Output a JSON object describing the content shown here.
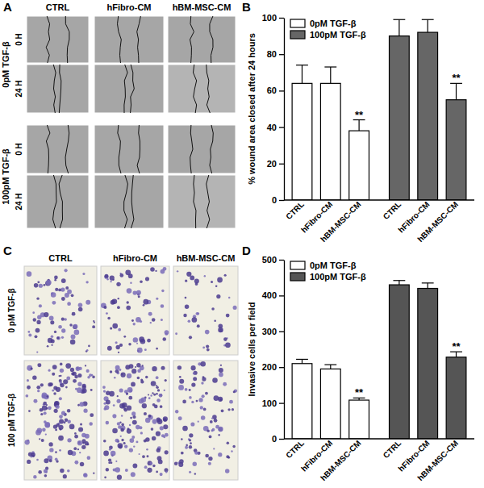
{
  "panel_a": {
    "label": "A",
    "columns": [
      "CTRL",
      "hFibro-CM",
      "hBM-MSC-CM"
    ],
    "row_groups": [
      {
        "label": "0pM TGF-β",
        "rows": [
          "0 H",
          "24 H"
        ]
      },
      {
        "label": "100pM TGF-β",
        "rows": [
          "0 H",
          "24 H"
        ]
      }
    ]
  },
  "panel_c": {
    "label": "C",
    "columns": [
      "CTRL",
      "hFibro-CM",
      "hBM-MSC-CM"
    ],
    "rows": [
      "0 pM TGF-β",
      "100 pM TGF-β"
    ]
  },
  "chart_data": [
    {
      "type": "bar",
      "panel_label": "B",
      "y_label": "% wound area closed after 24 hours",
      "categories": [
        "CTRL",
        "hFibro-CM",
        "hBM-MSC-CM"
      ],
      "series": [
        {
          "name": "0pM TGF-β",
          "color": "#ffffff",
          "values": [
            64,
            64,
            38
          ],
          "errors": [
            10,
            9,
            6
          ],
          "significance": [
            null,
            null,
            "**"
          ]
        },
        {
          "name": "100pM TGF-β",
          "color": "#666666",
          "values": [
            90,
            92,
            55
          ],
          "errors": [
            9,
            7,
            9
          ],
          "significance": [
            null,
            null,
            "**"
          ]
        }
      ],
      "ylim": [
        0,
        100
      ],
      "yticks": [
        0,
        20,
        40,
        60,
        80,
        100
      ],
      "grid": false,
      "legend": "upper left"
    },
    {
      "type": "bar",
      "panel_label": "D",
      "y_label": "Invasive cells per field",
      "categories": [
        "CTRL",
        "hFibro-CM",
        "hBM-MSC-CM"
      ],
      "series": [
        {
          "name": "0pM TGF-β",
          "color": "#ffffff",
          "values": [
            210,
            195,
            108
          ],
          "errors": [
            12,
            12,
            6
          ],
          "significance": [
            null,
            null,
            "**"
          ]
        },
        {
          "name": "100pM TGF-β",
          "color": "#555555",
          "values": [
            430,
            420,
            228
          ],
          "errors": [
            12,
            15,
            15
          ],
          "significance": [
            null,
            null,
            "**"
          ]
        }
      ],
      "ylim": [
        0,
        500
      ],
      "yticks": [
        0,
        100,
        200,
        300,
        400,
        500
      ],
      "grid": false,
      "legend": "upper left"
    }
  ]
}
